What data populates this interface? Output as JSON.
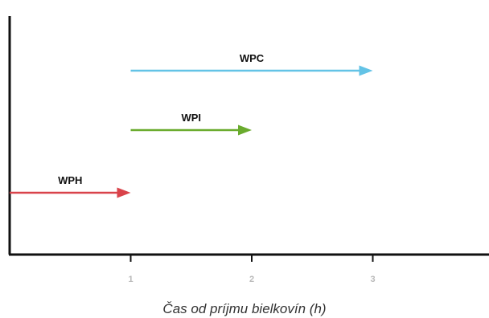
{
  "chart_data": {
    "type": "bar",
    "title": "",
    "xlabel": "Čas od príjmu bielkovín (h)",
    "ylabel": "",
    "xlim": [
      0,
      3.95
    ],
    "xticks": [
      "1",
      "2",
      "3"
    ],
    "xtick_values": [
      1,
      2,
      3
    ],
    "grid": false,
    "series": [
      {
        "name": "WPC",
        "start": 1,
        "end": 3,
        "color": "#63c3e6"
      },
      {
        "name": "WPI",
        "start": 1,
        "end": 2,
        "color": "#6aab2e"
      },
      {
        "name": "WPH",
        "start": 0,
        "end": 1,
        "color": "#d9434a"
      }
    ]
  }
}
